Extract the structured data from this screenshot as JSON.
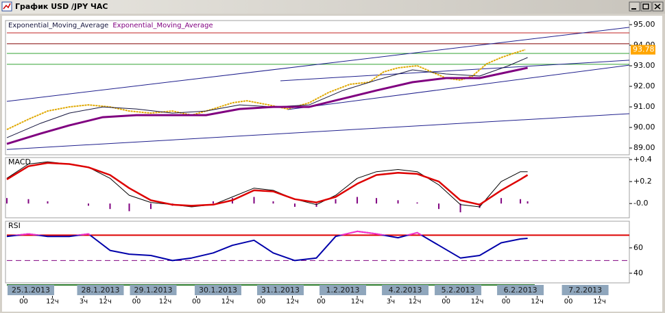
{
  "window": {
    "title": "График USD /JPY ЧАС"
  },
  "chart_data": [
    {
      "type": "price",
      "xlim": [
        0,
        259.4
      ],
      "ylim": [
        88.67,
        95.2
      ],
      "yticks": [
        {
          "value": 95,
          "label": "95.00"
        },
        {
          "value": 94,
          "label": "94.00"
        },
        {
          "value": 93,
          "label": "93.00"
        },
        {
          "value": 92,
          "label": "92.00"
        },
        {
          "value": 91,
          "label": "91.00"
        },
        {
          "value": 90,
          "label": "90.00"
        },
        {
          "value": 89,
          "label": "89.00"
        }
      ],
      "price": {
        "color": "#e0a800",
        "x": [
          0,
          9,
          17,
          26,
          34,
          43,
          51,
          60,
          69,
          77,
          86,
          94,
          100,
          109,
          117,
          126,
          134,
          143,
          151,
          157,
          163,
          171,
          177,
          183,
          189,
          194,
          200,
          206,
          211,
          216
        ],
        "values": [
          89.9,
          90.4,
          90.8,
          91.0,
          91.1,
          91.0,
          90.8,
          90.7,
          90.8,
          90.6,
          90.9,
          91.2,
          91.3,
          91.1,
          90.9,
          91.2,
          91.7,
          92.1,
          92.2,
          92.7,
          92.9,
          93.0,
          92.7,
          92.4,
          92.3,
          92.5,
          93.1,
          93.4,
          93.6,
          93.78
        ]
      },
      "marker": {
        "value": 93.78,
        "color": "#ffa500"
      },
      "series": [
        {
          "name": "Exponential_Moving_Average",
          "color": "#14143c",
          "x": [
            0,
            14,
            26,
            40,
            54,
            69,
            83,
            97,
            111,
            126,
            140,
            154,
            169,
            183,
            197,
            209,
            217
          ],
          "values": [
            89.5,
            90.2,
            90.7,
            91.0,
            90.9,
            90.7,
            90.8,
            91.1,
            91.0,
            91.1,
            91.8,
            92.3,
            92.8,
            92.6,
            92.5,
            93.0,
            93.4
          ]
        },
        {
          "name": "Exponential_Moving_Average",
          "color": "#800080",
          "x": [
            0,
            14,
            26,
            40,
            54,
            69,
            83,
            97,
            111,
            126,
            140,
            154,
            169,
            183,
            197,
            209,
            217
          ],
          "values": [
            89.2,
            89.7,
            90.1,
            90.5,
            90.6,
            90.6,
            90.6,
            90.9,
            91.0,
            91.0,
            91.4,
            91.8,
            92.2,
            92.4,
            92.4,
            92.7,
            92.9
          ]
        }
      ],
      "trendlines": [
        {
          "color": "#1e1e8c",
          "x": [
            0,
            259.4
          ],
          "y": [
            91.27,
            94.87
          ]
        },
        {
          "color": "#1e1e8c",
          "x": [
            0,
            259.4
          ],
          "y": [
            88.93,
            90.67
          ]
        },
        {
          "color": "#1e1e8c",
          "x": [
            114,
            259.4
          ],
          "y": [
            92.27,
            93.27
          ]
        },
        {
          "color": "#1e1e8c",
          "x": [
            117,
            259.4
          ],
          "y": [
            90.87,
            93.03
          ]
        }
      ],
      "hlines": [
        {
          "value": 94.6,
          "color": "#c02020"
        },
        {
          "value": 94.07,
          "color": "#800000"
        },
        {
          "value": 93.6,
          "color": "#30a030"
        },
        {
          "value": 93.07,
          "color": "#30a030"
        }
      ]
    },
    {
      "type": "macd",
      "title": "MACD",
      "xlim": [
        0,
        259.4
      ],
      "ylim": [
        -0.13,
        0.419
      ],
      "yticks": [
        {
          "value": 0.4,
          "label": "+0.4"
        },
        {
          "value": 0.2,
          "label": "+0.2"
        },
        {
          "value": 0,
          "label": "-0.0"
        }
      ],
      "x": [
        0,
        9,
        17,
        26,
        34,
        43,
        51,
        60,
        69,
        77,
        86,
        94,
        103,
        111,
        120,
        129,
        137,
        146,
        154,
        163,
        171,
        180,
        189,
        197,
        206,
        214,
        217
      ],
      "series": [
        {
          "color": "#000000",
          "values": [
            0.23,
            0.36,
            0.38,
            0.36,
            0.33,
            0.23,
            0.075,
            0.01,
            -0.01,
            -0.03,
            -0.01,
            0.06,
            0.14,
            0.12,
            0.04,
            -0.01,
            0.075,
            0.23,
            0.29,
            0.31,
            0.29,
            0.17,
            -0.01,
            -0.03,
            0.2,
            0.29,
            0.29
          ]
        },
        {
          "color": "#dd0000",
          "values": [
            0.22,
            0.34,
            0.37,
            0.36,
            0.33,
            0.26,
            0.14,
            0.03,
            -0.01,
            -0.02,
            -0.01,
            0.03,
            0.12,
            0.11,
            0.04,
            0.01,
            0.06,
            0.18,
            0.26,
            0.28,
            0.27,
            0.2,
            0.03,
            -0.01,
            0.12,
            0.22,
            0.26
          ]
        }
      ],
      "histogram": {
        "color": "#800080",
        "values": [
          0.05,
          0.04,
          0.02,
          0,
          -0.02,
          -0.05,
          -0.07,
          -0.05,
          -0.02,
          0,
          0.02,
          0.05,
          0.06,
          0.02,
          -0.03,
          -0.03,
          0.04,
          0.06,
          0.05,
          0.03,
          0.01,
          -0.05,
          -0.08,
          -0.04,
          0.05,
          0.04,
          0.02
        ]
      }
    },
    {
      "type": "rsi",
      "title": "RSI",
      "xlim": [
        0,
        259.4
      ],
      "ylim": [
        32.4,
        81
      ],
      "yticks": [
        60,
        40
      ],
      "x": [
        0,
        9,
        17,
        26,
        34,
        43,
        51,
        60,
        69,
        77,
        86,
        94,
        103,
        111,
        120,
        129,
        137,
        146,
        154,
        163,
        171,
        180,
        189,
        197,
        206,
        214,
        217
      ],
      "values": [
        69,
        71,
        69,
        69,
        71,
        58,
        55,
        54,
        50,
        52,
        56,
        62,
        66,
        56,
        50,
        52,
        69,
        73,
        71,
        68,
        72,
        62,
        52,
        54,
        64,
        67,
        67.5
      ],
      "color": "#0000aa",
      "overbought": {
        "value": 70,
        "color": "#ff33cc",
        "line_color": "#dd0000"
      },
      "midline": {
        "value": 50,
        "color": "#800080"
      },
      "xticks": [
        {
          "value": 10,
          "label": "25.1.2013"
        },
        {
          "value": 39,
          "label": "28.1.2013"
        },
        {
          "value": 61,
          "label": "29.1.2013"
        },
        {
          "value": 88,
          "label": "30.1.2013"
        },
        {
          "value": 114,
          "label": "31.1.2013"
        },
        {
          "value": 140,
          "label": "1.2.2013"
        },
        {
          "value": 166,
          "label": "4.2.2013"
        },
        {
          "value": 188,
          "label": "5.2.2013"
        },
        {
          "value": 214,
          "label": "6.2.2013"
        },
        {
          "value": 241,
          "label": "7.2.2013"
        }
      ],
      "hour_ticks": [
        {
          "value": 7,
          "label": "00"
        },
        {
          "value": 19,
          "label": "12ч"
        },
        {
          "value": 32,
          "label": "3ч"
        },
        {
          "value": 41,
          "label": "12ч"
        },
        {
          "value": 54,
          "label": "00"
        },
        {
          "value": 66,
          "label": "12ч"
        },
        {
          "value": 79,
          "label": "00"
        },
        {
          "value": 92,
          "label": "12ч"
        },
        {
          "value": 106,
          "label": "00"
        },
        {
          "value": 119,
          "label": "12ч"
        },
        {
          "value": 131,
          "label": "00"
        },
        {
          "value": 146,
          "label": "12ч"
        },
        {
          "value": 160,
          "label": "3ч"
        },
        {
          "value": 170,
          "label": "12ч"
        },
        {
          "value": 183,
          "label": "00"
        },
        {
          "value": 196,
          "label": "12ч"
        },
        {
          "value": 208,
          "label": "00"
        },
        {
          "value": 221,
          "label": "12ч"
        },
        {
          "value": 234,
          "label": "00"
        },
        {
          "value": 247,
          "label": "12ч"
        }
      ]
    }
  ]
}
